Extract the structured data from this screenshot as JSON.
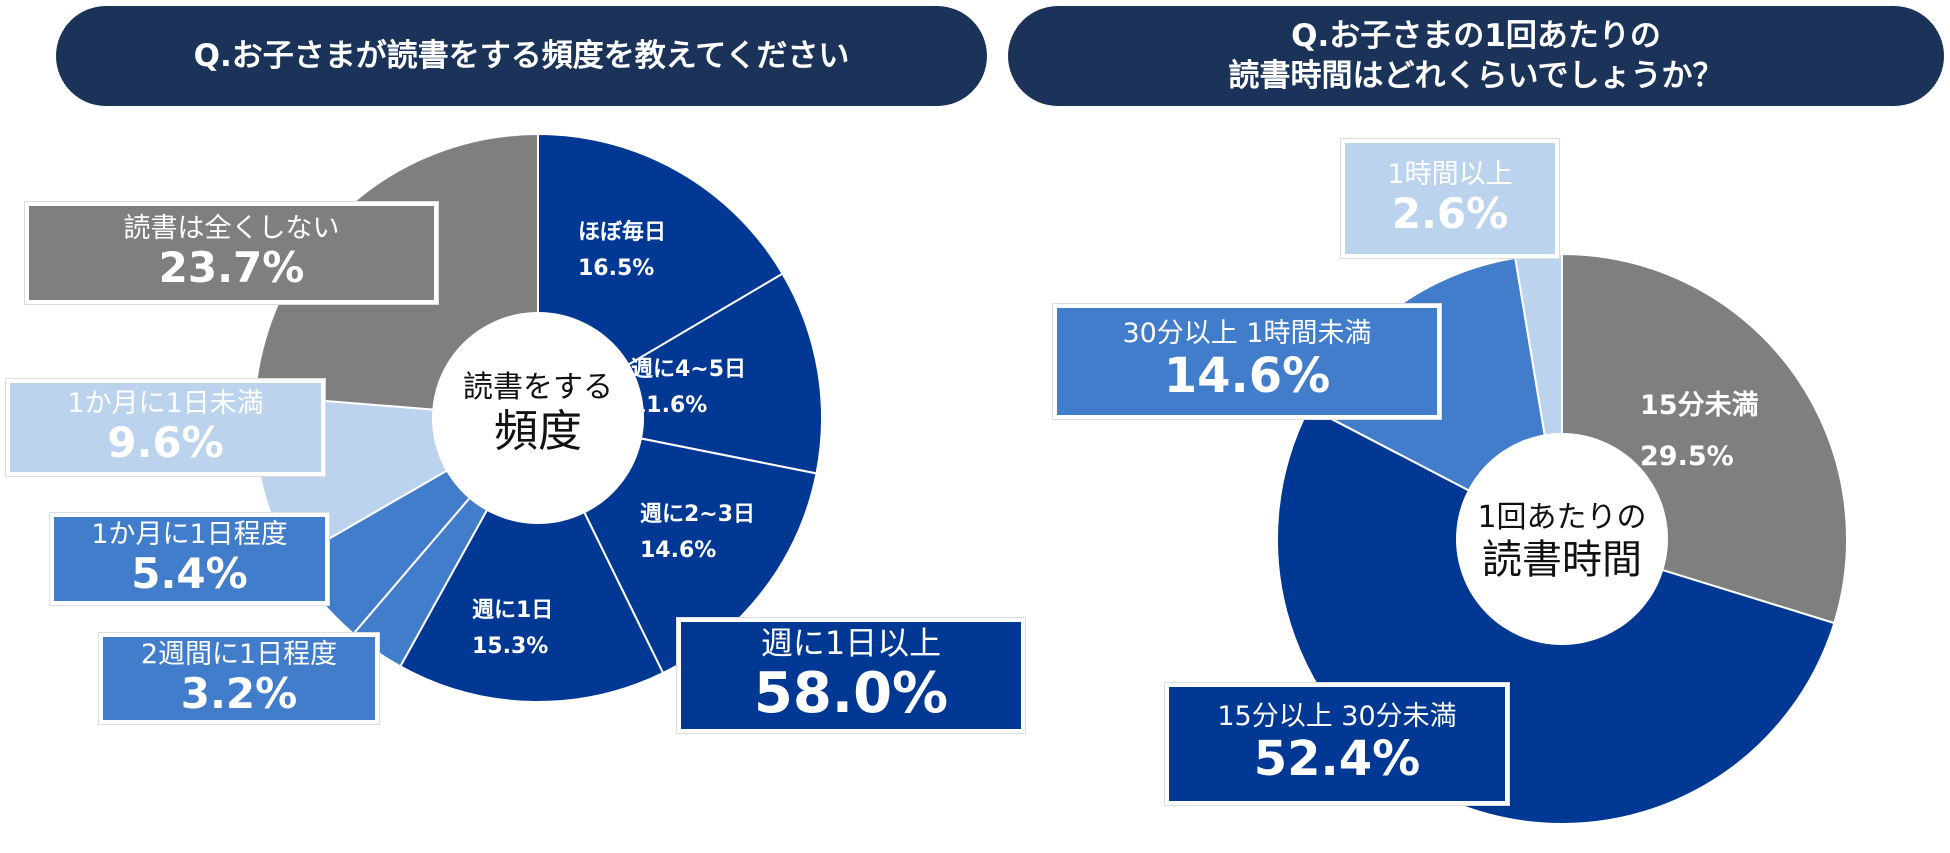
{
  "left": {
    "title": "Q.お子さまが読書をする頻度を教えてください",
    "center_line1": "読書をする",
    "center_line2": "頻度",
    "summary": {
      "label": "週に1日以上",
      "value": "58.0%"
    }
  },
  "right": {
    "title_line1": "Q.お子さまの1回あたりの",
    "title_line2": "読書時間はどれくらいでしょうか？",
    "center_line1": "1回あたりの",
    "center_line2": "読書時間"
  },
  "colors": {
    "header": "#1B3358",
    "dark": "#003893",
    "medium": "#427DCB",
    "light": "#BCD3EE",
    "gray": "#7F7F7F"
  },
  "chart_data": [
    {
      "type": "pie",
      "donut": true,
      "title": "Q.お子さまが読書をする頻度を教えてください",
      "categories": [
        "ほぼ毎日",
        "週に4~5日",
        "週に2~3日",
        "週に1日",
        "2週間に1日程度",
        "1か月に1日程度",
        "1か月に1日未満",
        "読書は全くしない"
      ],
      "values": [
        16.5,
        11.6,
        14.6,
        15.3,
        3.2,
        5.4,
        9.6,
        23.7
      ],
      "labels": [
        "16.5%",
        "11.6%",
        "14.6%",
        "15.3%",
        "3.2%",
        "5.4%",
        "9.6%",
        "23.7%"
      ],
      "colors": [
        "#003893",
        "#003893",
        "#003893",
        "#003893",
        "#427DCB",
        "#427DCB",
        "#BCD3EE",
        "#7F7F7F"
      ]
    },
    {
      "type": "pie",
      "donut": true,
      "title": "Q.お子さまの1回あたりの読書時間はどれくらいでしょうか？",
      "categories": [
        "15分未満",
        "15分以上 30分未満",
        "30分以上 1時間未満",
        "1時間以上"
      ],
      "values": [
        29.5,
        52.4,
        14.6,
        2.6
      ],
      "labels": [
        "29.5%",
        "52.4%",
        "14.6%",
        "2.6%"
      ],
      "colors": [
        "#7F7F7F",
        "#003893",
        "#427DCB",
        "#BCD3EE"
      ]
    }
  ]
}
